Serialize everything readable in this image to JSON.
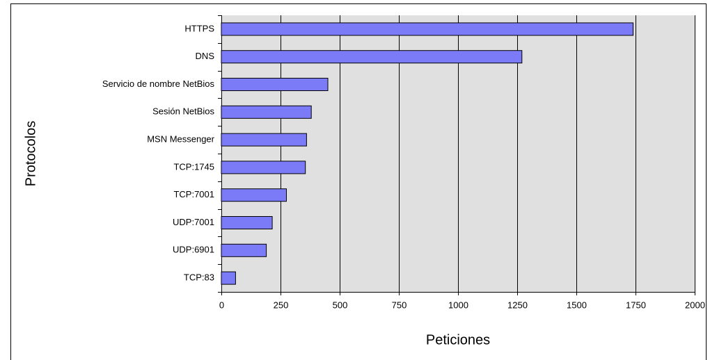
{
  "chart_data": {
    "type": "bar",
    "orientation": "horizontal",
    "xlabel": "Peticiones",
    "ylabel": "Protocolos",
    "categories": [
      "HTTPS",
      "DNS",
      "Servicio de nombre NetBios",
      "Sesión NetBios",
      "MSN Messenger",
      "TCP:1745",
      "TCP:7001",
      "UDP:7001",
      "UDP:6901",
      "TCP:83"
    ],
    "values": [
      1740,
      1270,
      450,
      380,
      360,
      355,
      275,
      215,
      190,
      60
    ],
    "color": "#7b7bf7",
    "xlim": [
      0,
      2000
    ],
    "xticks": [
      0,
      250,
      500,
      750,
      1000,
      1250,
      1500,
      1750,
      2000
    ],
    "grid": true
  }
}
